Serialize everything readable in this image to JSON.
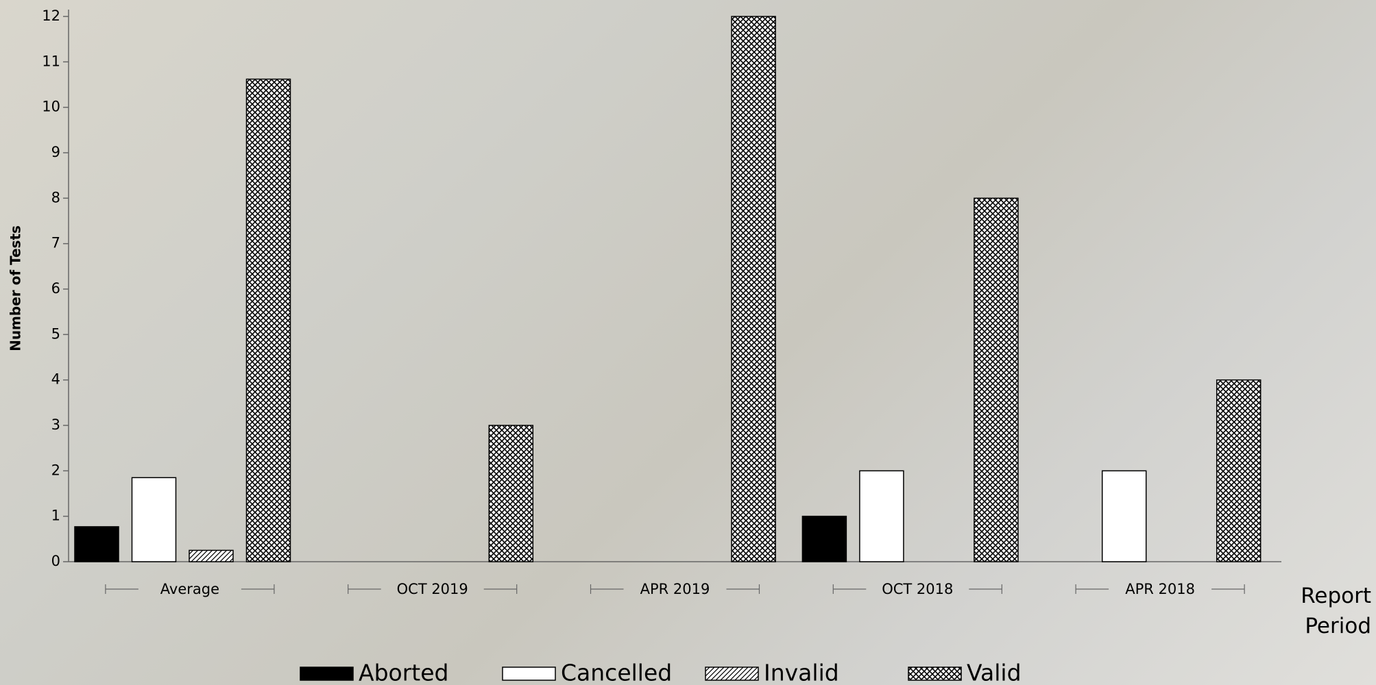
{
  "chart_data": {
    "type": "bar",
    "y_label": "Number of Tests",
    "x_label": "Report Period",
    "categories": [
      "Average",
      "OCT 2019",
      "APR 2019",
      "OCT 2018",
      "APR 2018"
    ],
    "series": [
      {
        "name": "Aborted",
        "color": "#000000",
        "pattern": "solid",
        "values": [
          0.77,
          0,
          0,
          1,
          0
        ]
      },
      {
        "name": "Cancelled",
        "color": "#ffffff",
        "pattern": "solid",
        "values": [
          1.85,
          0,
          0,
          2,
          2
        ]
      },
      {
        "name": "Invalid",
        "color": "#000000",
        "pattern": "diagonal",
        "values": [
          0.25,
          0,
          0,
          0,
          0
        ]
      },
      {
        "name": "Valid",
        "color": "#000000",
        "pattern": "crosshatch",
        "values": [
          10.62,
          3,
          12,
          8,
          4
        ]
      }
    ],
    "ylim": [
      0,
      12
    ],
    "yticks": [
      0,
      1,
      2,
      3,
      4,
      5,
      6,
      7,
      8,
      9,
      10,
      11,
      12
    ]
  }
}
